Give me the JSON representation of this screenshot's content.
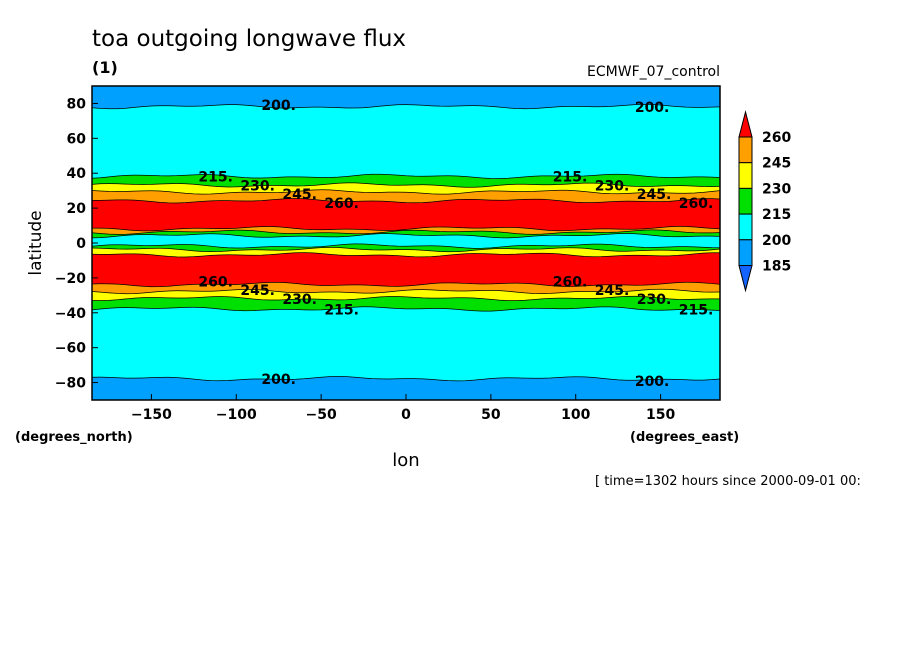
{
  "chart_data": {
    "type": "heatmap",
    "subtype": "filled contour",
    "title": "toa outgoing longwave flux",
    "subtitle": "(1)",
    "dataset_label": "ECMWF_07_control",
    "xlabel": "lon",
    "ylabel": "latitude",
    "xunits": "(degrees_east)",
    "yunits": "(degrees_north)",
    "time_label": "[ time=1302 hours since 2000-09-01 00:",
    "xlim": [
      -185,
      185
    ],
    "ylim": [
      -90,
      90
    ],
    "xticks": [
      -150,
      -100,
      -50,
      0,
      50,
      100,
      150
    ],
    "yticks": [
      -80,
      -60,
      -40,
      -20,
      0,
      20,
      40,
      60,
      80
    ],
    "levels": [
      185,
      200,
      215,
      230,
      245,
      260
    ],
    "colorbar": {
      "labels": [
        "260",
        "245",
        "230",
        "215",
        "200",
        "185"
      ],
      "colors": {
        "below_185": "#1464ff",
        "185_200": "#00a0ff",
        "200_215": "#00ffff",
        "215_230": "#00e000",
        "230_245": "#ffff00",
        "245_260": "#ffa000",
        "above_260": "#ff0000"
      },
      "extend": "both"
    },
    "bands": [
      {
        "lat": [
          78,
          90
        ],
        "range": "185_200"
      },
      {
        "lat": [
          38,
          78
        ],
        "range": "200_215"
      },
      {
        "lat": [
          33,
          38
        ],
        "range": "215_230"
      },
      {
        "lat": [
          29,
          33
        ],
        "range": "230_245"
      },
      {
        "lat": [
          24,
          29
        ],
        "range": "245_260"
      },
      {
        "lat": [
          8,
          24
        ],
        "range": "above_260"
      },
      {
        "lat": [
          6,
          8
        ],
        "range": "245_260"
      },
      {
        "lat": [
          4,
          6
        ],
        "range": "215_230"
      },
      {
        "lat": [
          -2,
          4
        ],
        "range": "200_215"
      },
      {
        "lat": [
          -4,
          -2
        ],
        "range": "215_230"
      },
      {
        "lat": [
          -7,
          -4
        ],
        "range": "230_245"
      },
      {
        "lat": [
          -24,
          -7
        ],
        "range": "above_260"
      },
      {
        "lat": [
          -28,
          -24
        ],
        "range": "245_260"
      },
      {
        "lat": [
          -32,
          -28
        ],
        "range": "230_245"
      },
      {
        "lat": [
          -38,
          -32
        ],
        "range": "215_230"
      },
      {
        "lat": [
          -78,
          -38
        ],
        "range": "200_215"
      },
      {
        "lat": [
          -90,
          -78
        ],
        "range": "185_200"
      }
    ],
    "contour_labels": [
      {
        "text": "200.",
        "lon": -75,
        "lat": 79
      },
      {
        "text": "200.",
        "lon": 145,
        "lat": 78
      },
      {
        "text": "215.",
        "lon": -75,
        "lat": 38
      },
      {
        "text": "230.",
        "lon": -75,
        "lat": 33
      },
      {
        "text": "245.",
        "lon": -75,
        "lat": 28
      },
      {
        "text": "260.",
        "lon": -75,
        "lat": 23
      },
      {
        "text": "215.",
        "lon": 145,
        "lat": 38
      },
      {
        "text": "230.",
        "lon": 145,
        "lat": 33
      },
      {
        "text": "245.",
        "lon": 145,
        "lat": 28
      },
      {
        "text": "260.",
        "lon": 145,
        "lat": 23
      },
      {
        "text": "260.",
        "lon": -75,
        "lat": -22
      },
      {
        "text": "245.",
        "lon": -75,
        "lat": -27
      },
      {
        "text": "230.",
        "lon": -75,
        "lat": -32
      },
      {
        "text": "215.",
        "lon": -75,
        "lat": -38
      },
      {
        "text": "260.",
        "lon": 145,
        "lat": -22
      },
      {
        "text": "245.",
        "lon": 145,
        "lat": -27
      },
      {
        "text": "230.",
        "lon": 145,
        "lat": -32
      },
      {
        "text": "215.",
        "lon": 145,
        "lat": -38
      },
      {
        "text": "200.",
        "lon": -75,
        "lat": -78
      },
      {
        "text": "200.",
        "lon": 145,
        "lat": -79
      }
    ]
  }
}
